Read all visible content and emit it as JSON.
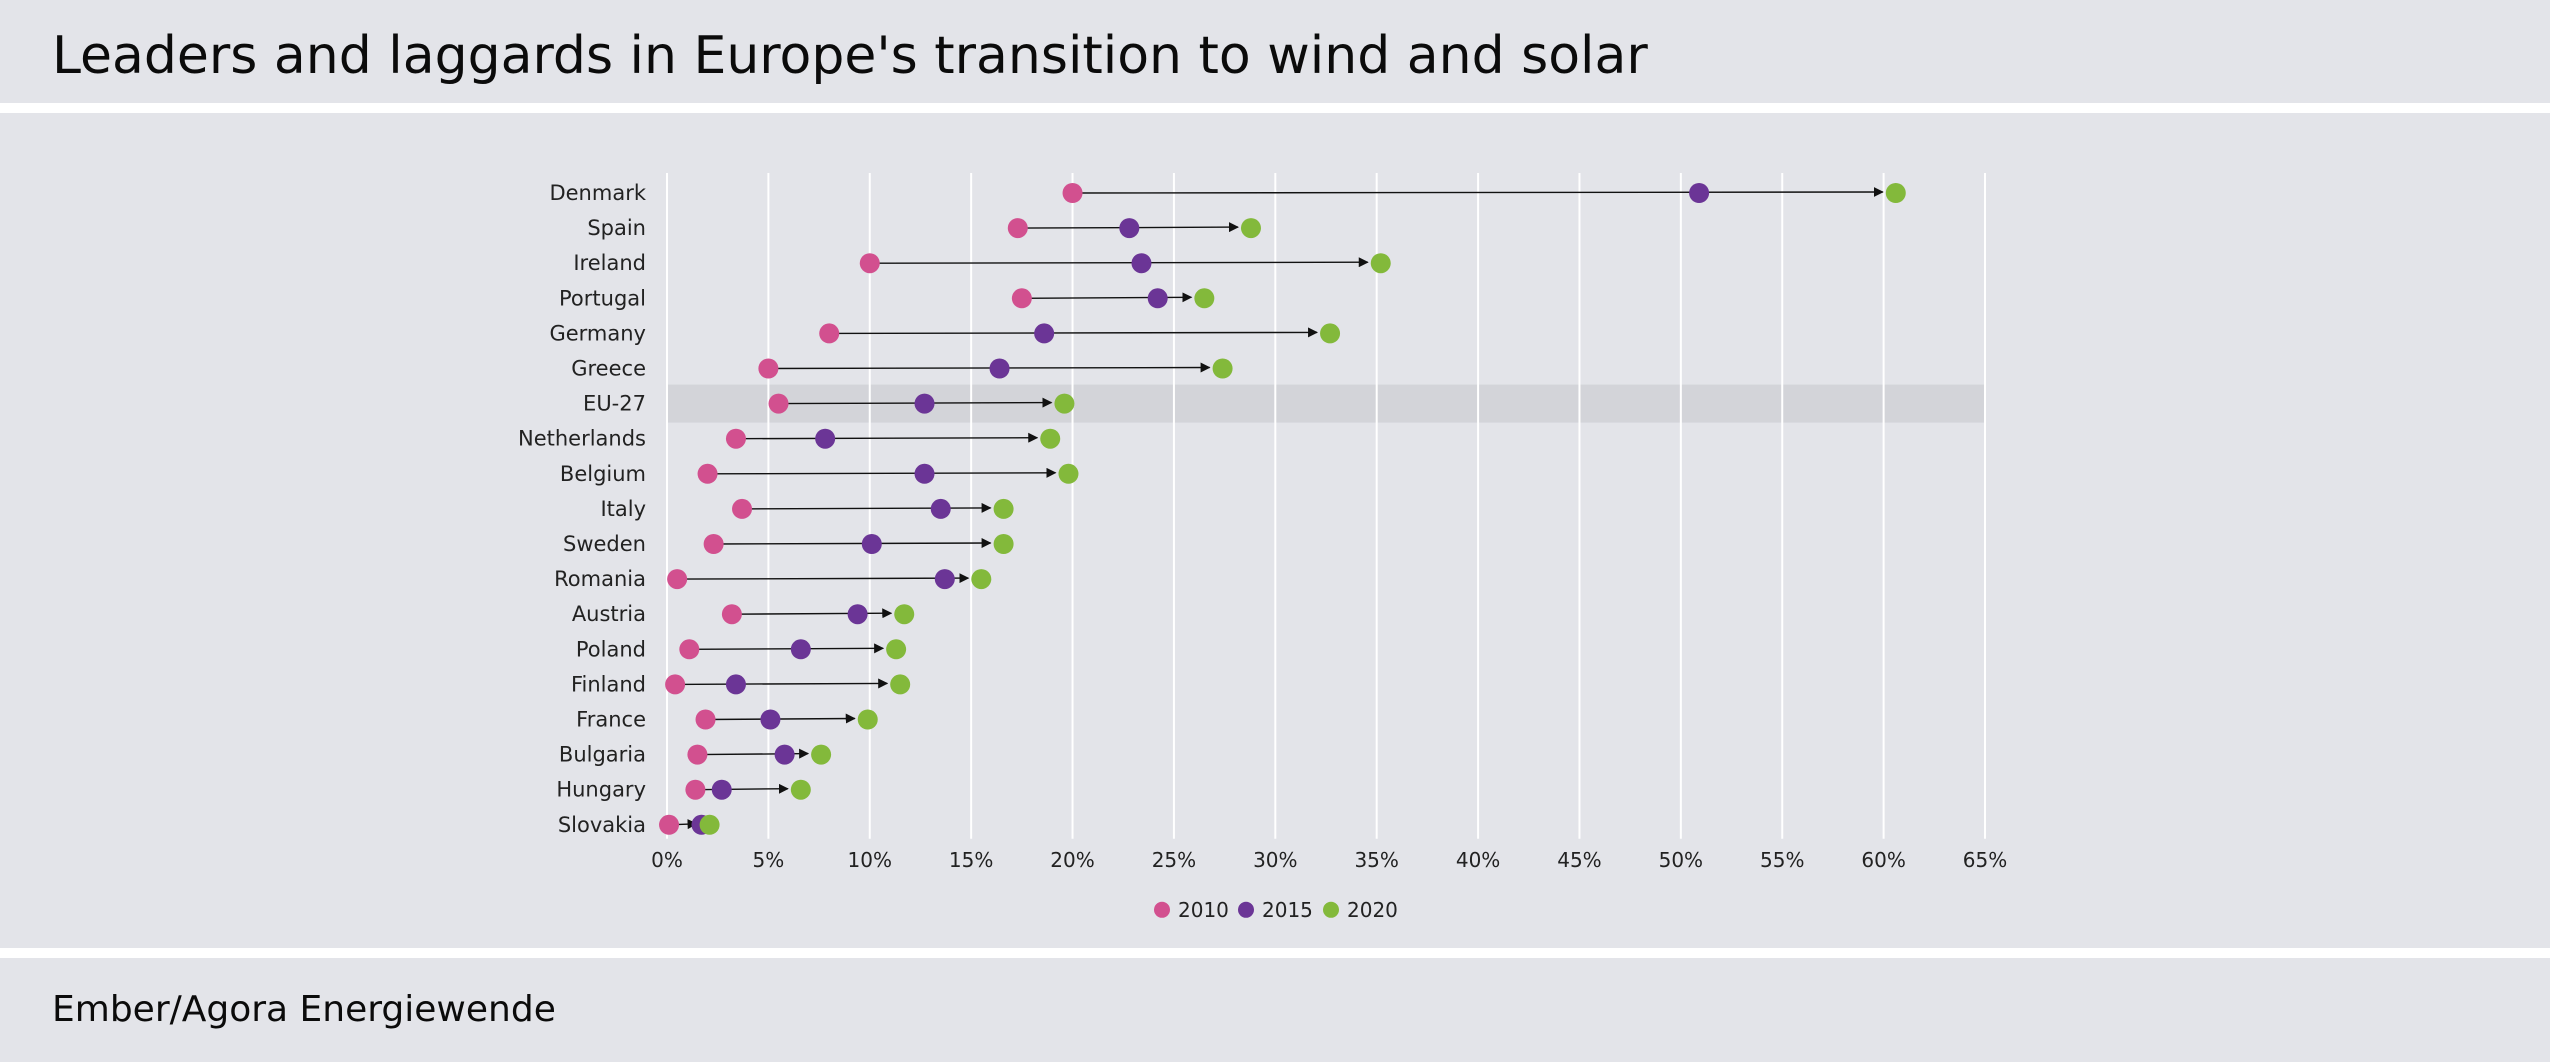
{
  "title": "Leaders and laggards in Europe's transition to wind and solar",
  "source": "Ember/Agora Energiewende",
  "colors": {
    "background": "#e3e4e9",
    "highlight_row": "#d3d4d9",
    "gridline": "#ffffff",
    "s2010": "#d2508f",
    "s2015": "#6b3596",
    "s2020": "#83b93b",
    "arrow": "#111111"
  },
  "chart_data": {
    "type": "dot-range",
    "title": "Leaders and laggards in Europe's transition to wind and solar",
    "xlabel": "",
    "ylabel": "",
    "xlim": [
      0,
      65
    ],
    "x_ticks": [
      0,
      5,
      10,
      15,
      20,
      25,
      30,
      35,
      40,
      45,
      50,
      55,
      60,
      65
    ],
    "x_tick_labels": [
      "0%",
      "5%",
      "10%",
      "15%",
      "20%",
      "25%",
      "30%",
      "35%",
      "40%",
      "45%",
      "50%",
      "55%",
      "60%",
      "65%"
    ],
    "grid": true,
    "legend_position": "bottom",
    "highlighted_category": "EU-27",
    "categories": [
      "Denmark",
      "Spain",
      "Ireland",
      "Portugal",
      "Germany",
      "Greece",
      "EU-27",
      "Netherlands",
      "Belgium",
      "Italy",
      "Sweden",
      "Romania",
      "Austria",
      "Poland",
      "Finland",
      "France",
      "Bulgaria",
      "Hungary",
      "Slovakia"
    ],
    "series": [
      {
        "name": "2010",
        "values": [
          20.0,
          17.3,
          10.0,
          17.5,
          8.0,
          5.0,
          5.5,
          3.4,
          2.0,
          3.7,
          2.3,
          0.5,
          3.2,
          1.1,
          0.4,
          1.9,
          1.5,
          1.4,
          0.1
        ]
      },
      {
        "name": "2015",
        "values": [
          50.9,
          22.8,
          23.4,
          24.2,
          18.6,
          16.4,
          12.7,
          7.8,
          12.7,
          13.5,
          10.1,
          13.7,
          9.4,
          6.6,
          3.4,
          5.1,
          5.8,
          2.7,
          1.7
        ]
      },
      {
        "name": "2020",
        "values": [
          60.6,
          28.8,
          35.2,
          26.5,
          32.7,
          27.4,
          19.6,
          18.9,
          19.8,
          16.6,
          16.6,
          15.5,
          11.7,
          11.3,
          11.5,
          9.9,
          7.6,
          6.6,
          2.1
        ]
      }
    ]
  }
}
